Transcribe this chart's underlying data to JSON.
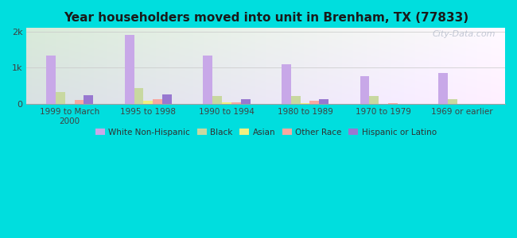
{
  "title": "Year householders moved into unit in Brenham, TX (77833)",
  "categories": [
    "1999 to March\n2000",
    "1995 to 1998",
    "1990 to 1994",
    "1980 to 1989",
    "1970 to 1979",
    "1969 or earlier"
  ],
  "series": {
    "White Non-Hispanic": [
      1350,
      1900,
      1350,
      1100,
      780,
      850
    ],
    "Black": [
      320,
      430,
      220,
      220,
      220,
      130
    ],
    "Asian": [
      10,
      100,
      50,
      20,
      10,
      10
    ],
    "Other Race": [
      110,
      130,
      50,
      80,
      20,
      10
    ],
    "Hispanic or Latino": [
      240,
      270,
      130,
      130,
      10,
      10
    ]
  },
  "colors": {
    "White Non-Hispanic": "#c8a8e8",
    "Black": "#c8d8a0",
    "Asian": "#f0f080",
    "Other Race": "#f8a8a0",
    "Hispanic or Latino": "#9878d0"
  },
  "ylim": [
    0,
    2100
  ],
  "yticks": [
    0,
    1000,
    2000
  ],
  "ytick_labels": [
    "0",
    "1k",
    "2k"
  ],
  "outer_bg": "#00dede",
  "bar_width": 0.12,
  "watermark": "City-Data.com"
}
